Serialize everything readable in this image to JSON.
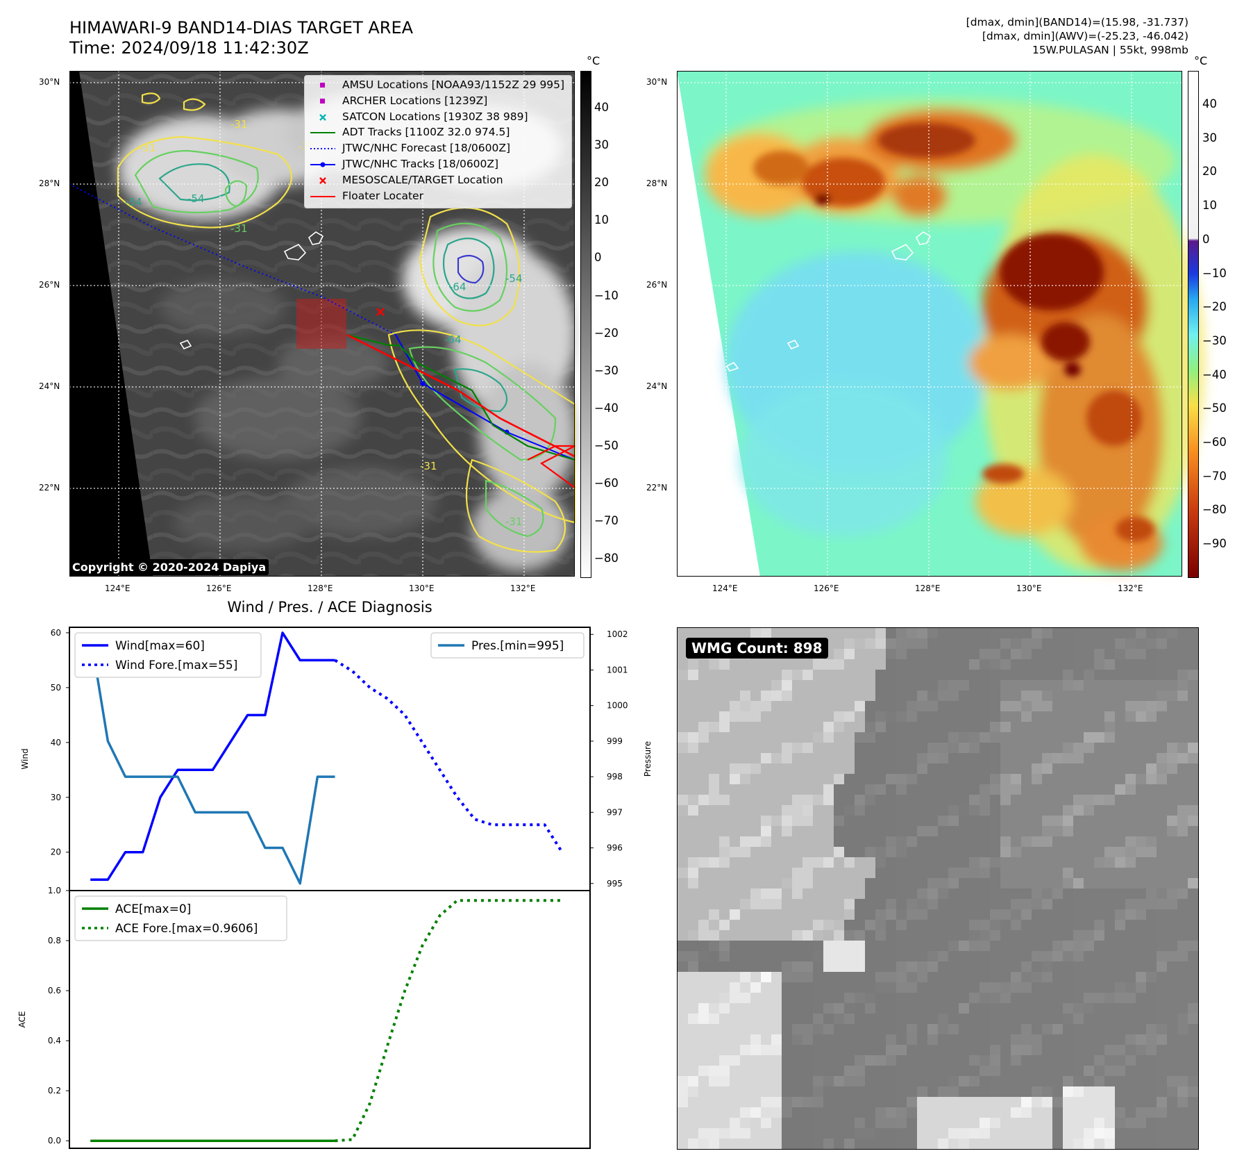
{
  "header": {
    "title_line1": "HIMAWARI-9 BAND14-DIAS TARGET AREA",
    "title_line2": "Time: 2024/09/18 11:42:30Z",
    "right_line1": "[dmax, dmin](BAND14)=(15.98, -31.737)",
    "right_line2": "[dmax, dmin](AWV)=(-25.23, -46.042)",
    "right_line3": "15W.PULASAN | 55kt, 998mb"
  },
  "map_ir": {
    "lat_labels": [
      "30°N",
      "28°N",
      "26°N",
      "24°N",
      "22°N"
    ],
    "lon_labels": [
      "124°E",
      "126°E",
      "128°E",
      "130°E",
      "132°E"
    ],
    "contour_labels": [
      "-31",
      "-31",
      "-54",
      "-54",
      "-31",
      "-64",
      "-54",
      "-64",
      "-31",
      "-31",
      "-31"
    ],
    "copyright": "Copyright © 2020-2024 Dapiya",
    "colorbar_unit": "°C",
    "colorbar_ticks": [
      "40",
      "30",
      "20",
      "10",
      "0",
      "−10",
      "−20",
      "−30",
      "−40",
      "−50",
      "−60",
      "−70",
      "−80"
    ],
    "legend": [
      {
        "label": "AMSU Locations [NOAA93/1152Z 29 995]",
        "color": "#bf00bf",
        "marker": "square"
      },
      {
        "label": "ARCHER Locations [1239Z]",
        "color": "#bf00bf",
        "marker": "square"
      },
      {
        "label": "SATCON Locations [1930Z 38 989]",
        "color": "#00b4b4",
        "marker": "x"
      },
      {
        "label": "ADT Tracks [1100Z 32.0 974.5]",
        "color": "#008000",
        "marker": "line"
      },
      {
        "label": "JTWC/NHC Forecast [18/0600Z]",
        "color": "#0000ff",
        "marker": "dotted"
      },
      {
        "label": "JTWC/NHC Tracks [18/0600Z]",
        "color": "#0000ff",
        "marker": "line-dot"
      },
      {
        "label": "MESOSCALE/TARGET Location",
        "color": "#ff0000",
        "marker": "x"
      },
      {
        "label": "Floater Locater",
        "color": "#ff0000",
        "marker": "line"
      }
    ]
  },
  "map_awv": {
    "lat_labels": [
      "30°N",
      "28°N",
      "26°N",
      "24°N",
      "22°N"
    ],
    "lon_labels": [
      "124°E",
      "126°E",
      "128°E",
      "130°E",
      "132°E"
    ],
    "colorbar_unit": "°C",
    "colorbar_ticks": [
      "40",
      "30",
      "20",
      "10",
      "0",
      "−10",
      "−20",
      "−30",
      "−40",
      "−50",
      "−60",
      "−70",
      "−80",
      "−90"
    ]
  },
  "wmg": {
    "badge": "WMG Count: 898"
  },
  "chart_data": [
    {
      "type": "line",
      "title": "Wind / Pres. / ACE Diagnosis",
      "ylabel": "Wind",
      "y2label": "Pressure",
      "ylim": [
        13,
        61
      ],
      "y2lim": [
        994.8,
        1002.2
      ],
      "yticks": [
        "60",
        "50",
        "40",
        "30",
        "20"
      ],
      "y2ticks": [
        "1002",
        "1001",
        "1000",
        "999",
        "998",
        "997",
        "996",
        "995"
      ],
      "series": [
        {
          "name": "Wind[max=60]",
          "axis": "left",
          "color": "#0000ff",
          "style": "solid",
          "x": [
            0,
            1,
            2,
            3,
            4,
            5,
            6,
            7,
            8,
            9,
            10,
            11,
            12,
            13,
            14
          ],
          "values": [
            15,
            15,
            20,
            20,
            30,
            35,
            35,
            35,
            40,
            45,
            45,
            60,
            55,
            55,
            55
          ]
        },
        {
          "name": "Wind Fore.[max=55]",
          "axis": "left",
          "color": "#0000ff",
          "style": "dotted",
          "x": [
            14,
            15,
            16,
            17,
            18,
            19,
            20,
            21,
            22,
            23,
            24,
            25,
            26,
            27
          ],
          "values": [
            55,
            53,
            50,
            48,
            45,
            40,
            35,
            30,
            26,
            25,
            25,
            25,
            25,
            20
          ]
        },
        {
          "name": "Pres.[min=995]",
          "axis": "right",
          "color": "#1f77b4",
          "style": "solid",
          "x": [
            0,
            1,
            2,
            3,
            4,
            5,
            6,
            7,
            8,
            9,
            10,
            11,
            12,
            13,
            14
          ],
          "values": [
            1002,
            999,
            998,
            998,
            998,
            998,
            997,
            997,
            997,
            997,
            996,
            996,
            995,
            998,
            998
          ]
        }
      ]
    },
    {
      "type": "line",
      "ylabel": "ACE",
      "ylim": [
        -0.03,
        1.0
      ],
      "yticks": [
        "1.0",
        "0.8",
        "0.6",
        "0.4",
        "0.2",
        "0.0"
      ],
      "series": [
        {
          "name": "ACE[max=0]",
          "color": "#008000",
          "style": "solid",
          "x": [
            0,
            14
          ],
          "values": [
            0,
            0
          ]
        },
        {
          "name": "ACE Fore.[max=0.9606]",
          "color": "#008000",
          "style": "dotted",
          "x": [
            14,
            15,
            16,
            17,
            18,
            19,
            20,
            21,
            22,
            23,
            24,
            25,
            26,
            27
          ],
          "values": [
            0,
            0.005,
            0.15,
            0.38,
            0.6,
            0.78,
            0.9,
            0.9606,
            0.9606,
            0.9606,
            0.9606,
            0.9606,
            0.9606,
            0.9606
          ]
        }
      ]
    }
  ]
}
